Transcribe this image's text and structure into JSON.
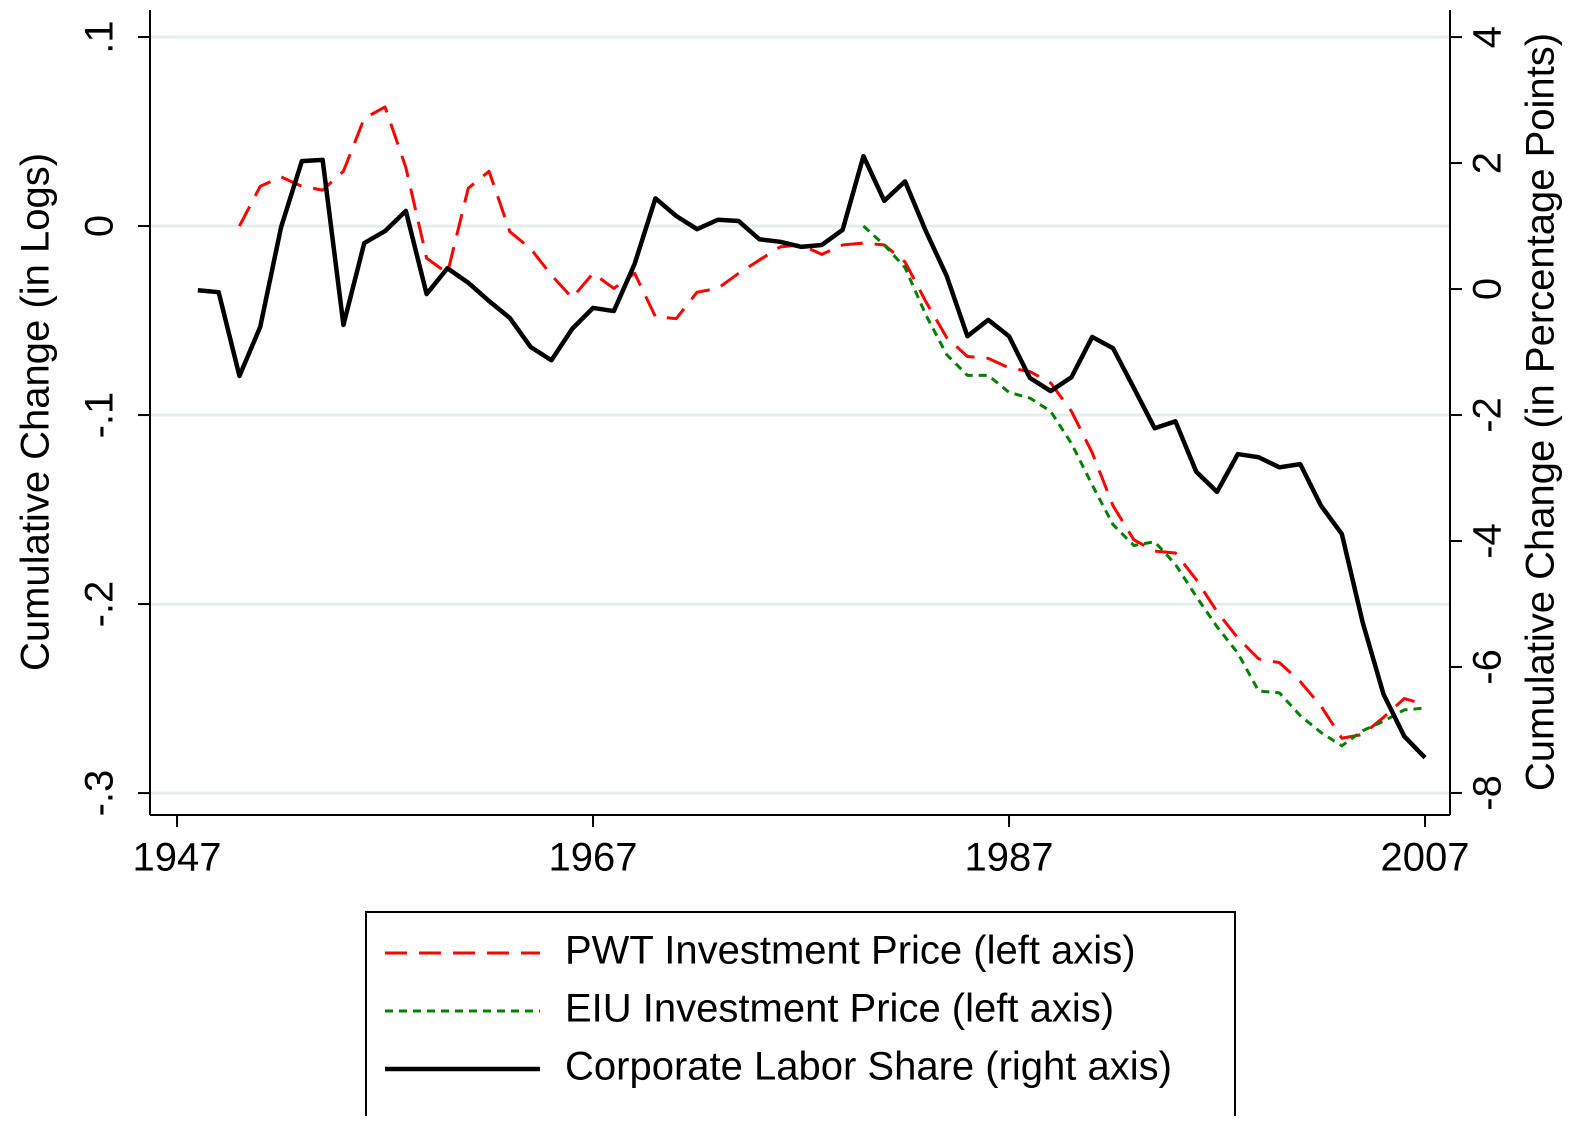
{
  "chart_data": {
    "type": "line",
    "x": [
      1948,
      1949,
      1950,
      1951,
      1952,
      1953,
      1954,
      1955,
      1956,
      1957,
      1958,
      1959,
      1960,
      1961,
      1962,
      1963,
      1964,
      1965,
      1966,
      1967,
      1968,
      1969,
      1970,
      1971,
      1972,
      1973,
      1974,
      1975,
      1976,
      1977,
      1978,
      1979,
      1980,
      1981,
      1982,
      1983,
      1984,
      1985,
      1986,
      1987,
      1988,
      1989,
      1990,
      1991,
      1992,
      1993,
      1994,
      1995,
      1996,
      1997,
      1998,
      1999,
      2000,
      2001,
      2002,
      2003,
      2004,
      2005,
      2006,
      2007
    ],
    "series": [
      {
        "name": "PWT Investment Price (left axis)",
        "color": "#ff0000",
        "dash": "dashed",
        "values": [
          null,
          null,
          0,
          0.021,
          0.026,
          0.021,
          0.019,
          0.029,
          0.057,
          0.063,
          0.031,
          -0.017,
          -0.025,
          0.02,
          0.029,
          -0.003,
          -0.012,
          -0.026,
          -0.038,
          -0.025,
          -0.033,
          -0.025,
          -0.048,
          -0.049,
          -0.035,
          -0.033,
          -0.025,
          -0.018,
          -0.011,
          -0.01,
          -0.015,
          -0.01,
          -0.009,
          -0.01,
          -0.019,
          -0.04,
          -0.059,
          -0.069,
          -0.07,
          -0.075,
          -0.077,
          -0.083,
          -0.098,
          -0.12,
          -0.148,
          -0.166,
          -0.172,
          -0.173,
          -0.187,
          -0.204,
          -0.218,
          -0.229,
          -0.231,
          -0.241,
          -0.254,
          -0.271,
          -0.269,
          -0.26,
          -0.25,
          -0.253
        ]
      },
      {
        "name": "EIU Investment Price (left axis)",
        "color": "#008000",
        "dash": "dotted",
        "values": [
          null,
          null,
          null,
          null,
          null,
          null,
          null,
          null,
          null,
          null,
          null,
          null,
          null,
          null,
          null,
          null,
          null,
          null,
          null,
          null,
          null,
          null,
          null,
          null,
          null,
          null,
          null,
          null,
          null,
          null,
          null,
          null,
          0,
          -0.01,
          -0.022,
          -0.047,
          -0.068,
          -0.079,
          -0.079,
          -0.088,
          -0.091,
          -0.098,
          -0.115,
          -0.137,
          -0.158,
          -0.169,
          -0.167,
          -0.179,
          -0.196,
          -0.212,
          -0.226,
          -0.246,
          -0.247,
          -0.259,
          -0.268,
          -0.275,
          -0.267,
          -0.262,
          -0.256,
          -0.255
        ]
      },
      {
        "name": "Corporate Labor Share (right axis)",
        "color": "#000000",
        "dash": "solid",
        "axis": "y2",
        "values": [
          -0.02,
          -0.05,
          -1.38,
          -0.6,
          0.98,
          2.03,
          2.05,
          -0.57,
          0.73,
          0.92,
          1.24,
          -0.08,
          0.33,
          0.1,
          -0.19,
          -0.46,
          -0.92,
          -1.13,
          -0.63,
          -0.3,
          -0.35,
          0.4,
          1.44,
          1.16,
          0.95,
          1.1,
          1.08,
          0.79,
          0.75,
          0.67,
          0.7,
          0.94,
          2.11,
          1.4,
          1.71,
          0.92,
          0.21,
          -0.75,
          -0.49,
          -0.75,
          -1.41,
          -1.62,
          -1.4,
          -0.76,
          -0.94,
          -1.57,
          -2.21,
          -2.1,
          -2.9,
          -3.22,
          -2.62,
          -2.67,
          -2.83,
          -2.78,
          -3.44,
          -3.89,
          -5.29,
          -6.43,
          -7.1,
          -7.44
        ]
      }
    ],
    "y_label": "Cumulative Change (in Logs)",
    "y2_label": "Cumulative Change (in Percentage Points)",
    "xlim": [
      1945.7,
      2008.2
    ],
    "xticks": [
      1947,
      1967,
      1987,
      2007
    ],
    "ylim": [
      -0.3116,
      0.1143
    ],
    "yticks": [
      {
        "value": -0.3,
        "label": "-.3"
      },
      {
        "value": -0.2,
        "label": "-.2"
      },
      {
        "value": -0.1,
        "label": "-.1"
      },
      0,
      {
        "value": 0.1,
        "label": ".1"
      }
    ],
    "y2lim": [
      -8.35,
      4.43
    ],
    "y2ticks": [
      -8,
      -6,
      -4,
      -2,
      0,
      2,
      4
    ],
    "grid": true,
    "legend": "bottom"
  }
}
